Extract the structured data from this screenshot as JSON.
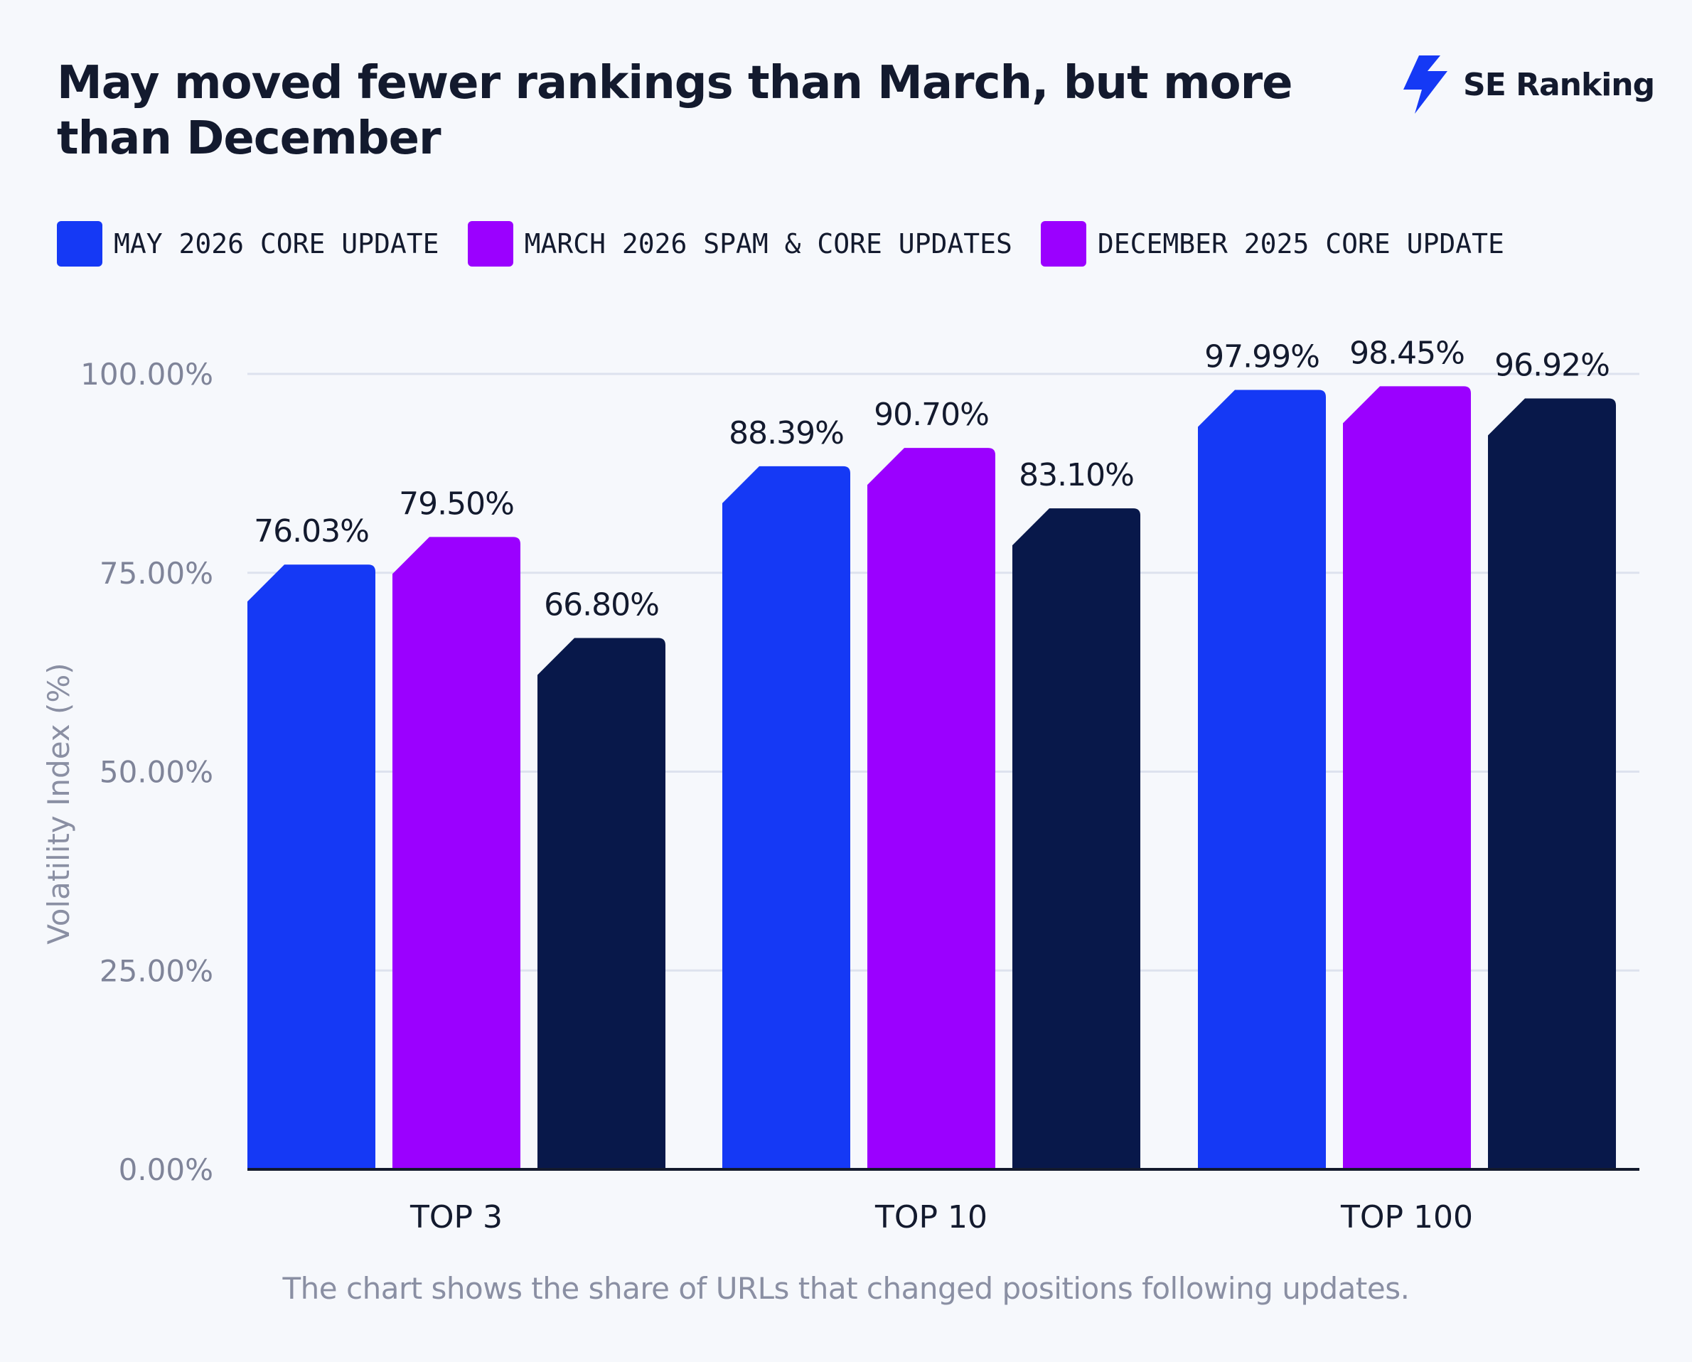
{
  "title": "May moved fewer rankings than March, but more than December",
  "brand": {
    "name": "SE Ranking",
    "icon": "lightning-bolt-icon",
    "color": "#1539f5"
  },
  "footnote": "The chart shows the share of URLs that changed positions following updates.",
  "chart_data": {
    "type": "bar",
    "title": "May moved fewer rankings than March, but more than December",
    "ylabel": "Volatility Index (%)",
    "xlabel": "",
    "categories": [
      "TOP 3",
      "TOP 10",
      "TOP 100"
    ],
    "ylim": [
      0,
      100
    ],
    "yticks": [
      0,
      25,
      50,
      75,
      100
    ],
    "ytick_labels": [
      "0.00%",
      "25.00%",
      "50.00%",
      "75.00%",
      "100.00%"
    ],
    "grid": true,
    "legend_position": "top-left",
    "series": [
      {
        "name": "MAY 2026 CORE UPDATE",
        "color": "#1539f5",
        "values": [
          76.03,
          88.39,
          97.99
        ],
        "labels": [
          "76.03%",
          "88.39%",
          "97.99%"
        ]
      },
      {
        "name": "MARCH 2026 SPAM & CORE UPDATES",
        "color": "#9b00ff",
        "values": [
          79.5,
          90.7,
          98.45
        ],
        "labels": [
          "79.50%",
          "90.70%",
          "98.45%"
        ]
      },
      {
        "name": "DECEMBER 2025 CORE UPDATE",
        "color": "#08184a",
        "values": [
          66.8,
          83.1,
          96.92
        ],
        "labels": [
          "66.80%",
          "83.10%",
          "96.92%"
        ]
      }
    ],
    "legend_colors": [
      "#1539f5",
      "#9b00ff",
      "#9b00ff"
    ]
  }
}
